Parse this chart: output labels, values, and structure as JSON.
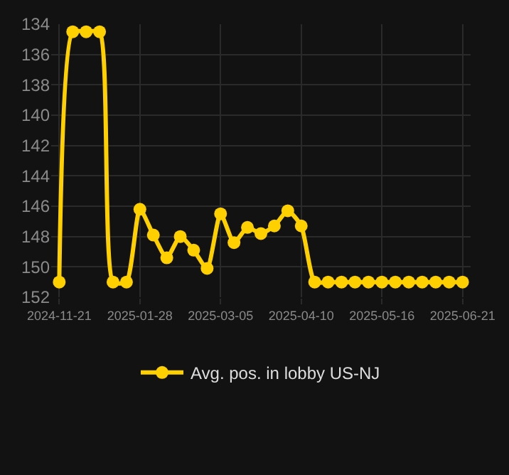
{
  "chart_data": {
    "type": "line",
    "categories": [
      "2024-11-21",
      null,
      null,
      null,
      null,
      null,
      "2025-01-28",
      null,
      null,
      null,
      null,
      null,
      "2025-03-05",
      null,
      null,
      null,
      null,
      null,
      "2025-04-10",
      null,
      null,
      null,
      null,
      null,
      "2025-05-16",
      null,
      null,
      null,
      null,
      null,
      "2025-06-21"
    ],
    "series": [
      {
        "name": "Avg. pos. in lobby US-NJ",
        "color": "#ffd000",
        "values": [
          151,
          134.5,
          134.5,
          134.5,
          151,
          151,
          146.2,
          147.9,
          149.4,
          148,
          148.9,
          150.1,
          146.5,
          148.4,
          147.4,
          147.8,
          147.3,
          146.3,
          147.3,
          151,
          151,
          151,
          151,
          151,
          151,
          151,
          151,
          151,
          151,
          151,
          151
        ]
      }
    ],
    "ylim": [
      152,
      134
    ],
    "yticks": [
      134,
      136,
      138,
      140,
      142,
      144,
      146,
      148,
      150,
      152
    ],
    "grid": true,
    "legend": "bottom",
    "marker": "circle",
    "line_style": "solid"
  }
}
